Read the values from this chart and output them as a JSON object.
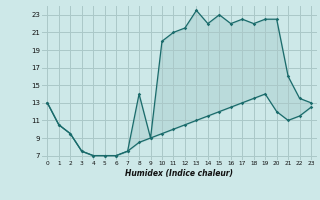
{
  "xlabel": "Humidex (Indice chaleur)",
  "xlim": [
    -0.5,
    23.5
  ],
  "ylim": [
    6.5,
    24.0
  ],
  "yticks": [
    7,
    9,
    11,
    13,
    15,
    17,
    19,
    21,
    23
  ],
  "xticks": [
    0,
    1,
    2,
    3,
    4,
    5,
    6,
    7,
    8,
    9,
    10,
    11,
    12,
    13,
    14,
    15,
    16,
    17,
    18,
    19,
    20,
    21,
    22,
    23
  ],
  "bg_color": "#cde8e8",
  "grid_color": "#aac8c8",
  "line_color": "#1a6b6b",
  "series1_x": [
    0,
    1,
    2,
    3,
    4,
    5,
    6,
    7,
    8,
    9,
    10,
    11,
    12,
    13,
    14,
    15,
    16,
    17,
    18,
    19,
    20,
    21,
    22,
    23
  ],
  "series1_y": [
    13,
    10.5,
    9.5,
    7.5,
    7,
    7,
    7,
    7.5,
    14,
    9,
    20,
    21,
    21.5,
    23.5,
    22,
    23,
    22,
    22.5,
    22,
    22.5,
    22.5,
    16,
    13.5,
    13
  ],
  "series2_x": [
    0,
    1,
    2,
    3,
    4,
    5,
    6,
    7,
    8,
    9,
    10,
    11,
    12,
    13,
    14,
    15,
    16,
    17,
    18,
    19,
    20,
    21,
    22,
    23
  ],
  "series2_y": [
    13,
    10.5,
    9.5,
    7.5,
    7,
    7,
    7,
    7.5,
    8.5,
    9,
    9.5,
    10,
    10.5,
    11,
    11.5,
    12,
    12.5,
    13,
    13.5,
    14,
    12,
    11,
    11.5,
    12.5
  ]
}
